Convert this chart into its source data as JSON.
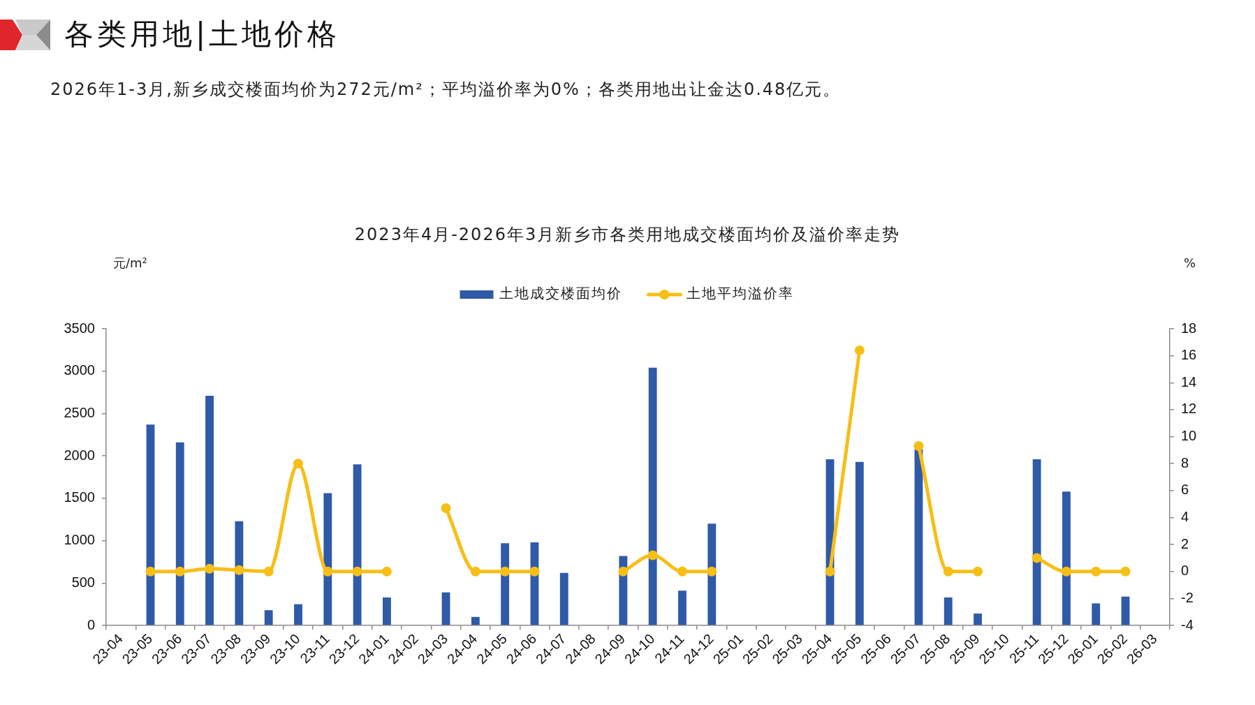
{
  "chart_data": {
    "type": "bar",
    "title": "2023年4月-2026年3月新乡市各类用地成交楼面均价及溢价率走势",
    "annotations": [
      "各类用地|土地价格",
      "2026年1-3月,新乡成交楼面均价为272元/m²；平均溢价率为0%；各类用地出让金达0.48亿元。"
    ],
    "ylabel": "元/m²",
    "y2label": "%",
    "categories": [
      "23-04",
      "23-05",
      "23-06",
      "23-07",
      "23-08",
      "23-09",
      "23-10",
      "23-11",
      "23-12",
      "24-01",
      "24-02",
      "24-03",
      "24-04",
      "24-05",
      "24-06",
      "24-07",
      "24-08",
      "24-09",
      "24-10",
      "24-11",
      "24-12",
      "25-01",
      "25-02",
      "25-03",
      "25-04",
      "25-05",
      "25-06",
      "25-07",
      "25-08",
      "25-09",
      "25-10",
      "25-11",
      "25-12",
      "26-01",
      "26-02",
      "26-03"
    ],
    "series": [
      {
        "name": "土地成交楼面均价",
        "color": "#2f5aa8",
        "values": [
          null,
          2370,
          2160,
          2710,
          1230,
          180,
          250,
          1560,
          1900,
          330,
          null,
          390,
          100,
          970,
          980,
          620,
          null,
          820,
          3040,
          410,
          1200,
          null,
          null,
          null,
          1960,
          1930,
          null,
          2080,
          330,
          140,
          null,
          1960,
          1580,
          260,
          340,
          null
        ]
      },
      {
        "name": "土地平均溢价率",
        "type": "line",
        "axis": "y2",
        "marker": "circle",
        "color": "#f7be16",
        "values": [
          null,
          0,
          0,
          0.2,
          0.1,
          0,
          8.0,
          0,
          0,
          0,
          null,
          4.7,
          0,
          0,
          0,
          null,
          null,
          0,
          1.2,
          0,
          0,
          null,
          null,
          null,
          0,
          16.4,
          null,
          9.3,
          0,
          0,
          null,
          1.0,
          0,
          0,
          0,
          null
        ]
      }
    ],
    "ylim": [
      0,
      3500
    ],
    "yticks": [
      0,
      500,
      1000,
      1500,
      2000,
      2500,
      3000,
      3500
    ],
    "y2lim": [
      -4,
      18
    ],
    "y2ticks": [
      -4,
      -2,
      0,
      2,
      4,
      6,
      8,
      10,
      12,
      14,
      16,
      18
    ],
    "legend": "top"
  }
}
